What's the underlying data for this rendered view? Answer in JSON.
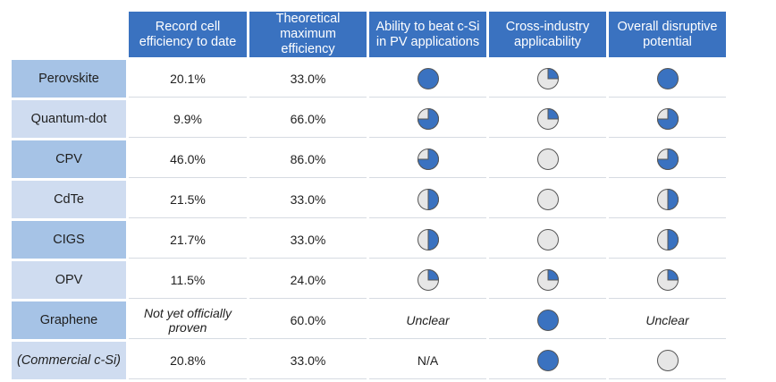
{
  "chart_data": {
    "type": "table",
    "columns": [
      "",
      "Record cell efficiency to date",
      "Theoretical maximum efficiency",
      "Ability to beat c-Si in PV applications",
      "Cross-industry applicability",
      "Overall disruptive potential"
    ],
    "rows": [
      {
        "label": "Perovskite",
        "label_italic": false,
        "record": "20.1%",
        "record_italic": false,
        "theoretical": "33.0%",
        "beat_csi": 1.0,
        "beat_csi_text": "",
        "cross_industry": 0.25,
        "cross_industry_text": "",
        "disruptive": 1.0,
        "disruptive_text": ""
      },
      {
        "label": "Quantum-dot",
        "label_italic": false,
        "record": "9.9%",
        "record_italic": false,
        "theoretical": "66.0%",
        "beat_csi": 0.75,
        "beat_csi_text": "",
        "cross_industry": 0.25,
        "cross_industry_text": "",
        "disruptive": 0.75,
        "disruptive_text": ""
      },
      {
        "label": "CPV",
        "label_italic": false,
        "record": "46.0%",
        "record_italic": false,
        "theoretical": "86.0%",
        "beat_csi": 0.75,
        "beat_csi_text": "",
        "cross_industry": 0.0,
        "cross_industry_text": "",
        "disruptive": 0.75,
        "disruptive_text": ""
      },
      {
        "label": "CdTe",
        "label_italic": false,
        "record": "21.5%",
        "record_italic": false,
        "theoretical": "33.0%",
        "beat_csi": 0.5,
        "beat_csi_text": "",
        "cross_industry": 0.0,
        "cross_industry_text": "",
        "disruptive": 0.5,
        "disruptive_text": ""
      },
      {
        "label": "CIGS",
        "label_italic": false,
        "record": "21.7%",
        "record_italic": false,
        "theoretical": "33.0%",
        "beat_csi": 0.5,
        "beat_csi_text": "",
        "cross_industry": 0.0,
        "cross_industry_text": "",
        "disruptive": 0.5,
        "disruptive_text": ""
      },
      {
        "label": "OPV",
        "label_italic": false,
        "record": "11.5%",
        "record_italic": false,
        "theoretical": "24.0%",
        "beat_csi": 0.25,
        "beat_csi_text": "",
        "cross_industry": 0.25,
        "cross_industry_text": "",
        "disruptive": 0.25,
        "disruptive_text": ""
      },
      {
        "label": "Graphene",
        "label_italic": false,
        "record": "Not yet officially proven",
        "record_italic": true,
        "theoretical": "60.0%",
        "beat_csi": null,
        "beat_csi_text": "Unclear",
        "cross_industry": 1.0,
        "cross_industry_text": "",
        "disruptive": null,
        "disruptive_text": "Unclear"
      },
      {
        "label": "(Commercial c-Si)",
        "label_italic": true,
        "record": "20.8%",
        "record_italic": false,
        "theoretical": "33.0%",
        "beat_csi": null,
        "beat_csi_text": "N/A",
        "cross_industry": 1.0,
        "cross_industry_text": "",
        "disruptive": 0.0,
        "disruptive_text": ""
      }
    ]
  },
  "colors": {
    "header_bg": "#3a72c0",
    "row_label_dark": "#a6c3e6",
    "row_label_light": "#cfdcf0",
    "harvey_fill": "#3a72c0",
    "harvey_empty": "#e6e6e6",
    "harvey_stroke": "#555555"
  }
}
